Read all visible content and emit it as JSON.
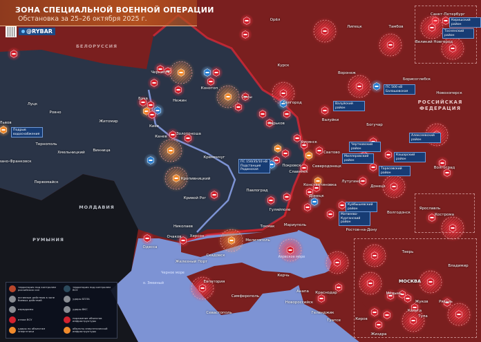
{
  "header": {
    "title": "ЗОНА СПЕЦИАЛЬНОЙ ВОЕННОЙ ОПЕРАЦИИ",
    "subtitle": "Обстановка за 25–26 октября 2025 г.",
    "brand": "@RYBAR"
  },
  "colors": {
    "russia": "#7a1f1f",
    "ukraine": "#2a3447",
    "neighbors": "#15171d",
    "sea": "#7d93d4",
    "strike_marker": "#d3222e",
    "drone_marker": "#2b7fd0",
    "energy_marker": "#f08a2c",
    "header": "#b2501f"
  },
  "countries": {
    "belarus": "БЕЛОРУССИЯ",
    "moldova": "МОЛДАВИЯ",
    "romania": "РУМЫНИЯ",
    "russia_line1": "РОССИЙСКАЯ",
    "russia_line2": "ФЕДЕРАЦИЯ"
  },
  "seas": {
    "black_sea": "Черное море",
    "azov_sea": "Азовское море",
    "snake_island": "о. Змеиный"
  },
  "cities": [
    "Луцк",
    "Ровно",
    "Житомир",
    "Киев",
    "Буча",
    "Чернигов",
    "Нежин",
    "Конотоп",
    "Канев",
    "Золотоноша",
    "Хмельницкий",
    "Тернополь",
    "Винница",
    "Ивано-Франковск",
    "Львов",
    "Кременчуг",
    "Первомайск",
    "Одесса",
    "Николаев",
    "Очаков",
    "Херсон",
    "Кривой Рог",
    "Кропивницкий",
    "Железный Порт",
    "Орёл",
    "Липецк",
    "Тамбов",
    "Воронеж",
    "Курск",
    "Белгород",
    "Борисоглебск",
    "Новохоперск",
    "Сумы",
    "Харьков",
    "Валуйки",
    "Богучар",
    "Санкт-Петербург",
    "Великий Новгород",
    "Купянск",
    "Сватово",
    "Северодонецк",
    "Славянск",
    "Покровск",
    "Константиновка",
    "Донецк",
    "Павлоград",
    "Гуляйполе",
    "Лутугино",
    "Донецк",
    "Мариуполь",
    "Ростов-на-Дону",
    "Волгодонск",
    "Волгоград",
    "Ярославль",
    "Кострома",
    "Токмак",
    "Мелитополь",
    "Скадовск",
    "Евпатория",
    "Симферополь",
    "Севастополь",
    "Керчь",
    "Анапа",
    "Краснодар",
    "Новороссийск",
    "Геленджик",
    "Туапсе",
    "Тверь",
    "Владимир",
    "МОСКВА",
    "Калуга",
    "Жуков",
    "Рязань",
    "Тула",
    "Киров",
    "Жиздра",
    "Медынь"
  ],
  "tags": [
    "Подрыв водоснабжения",
    "ПС 500 кВ Балашовская",
    "Киришский район",
    "Тосненский район",
    "Валуйский район",
    "Чертковский район",
    "Миллеровский район",
    "Тарасовский район",
    "Кашарский район",
    "Алексеевский район",
    "Куйбышевский район",
    "Матвеево-Курганский район",
    "ПС 150/35/10 кВ Подстанция Родинская"
  ],
  "legend": [
    {
      "icon": "territory-russia",
      "color": "#b8472c",
      "text": "территория под контролем российских сил"
    },
    {
      "icon": "territory-ukraine",
      "color": "#2c4a5c",
      "text": "территория под контролем ВСУ"
    },
    {
      "icon": "combat-area",
      "color": "#8a8d93",
      "text": "активные действия в зоне боевых действий"
    },
    {
      "icon": "drone-strike",
      "color": "#8a8d93",
      "text": "удары БПЛА"
    },
    {
      "icon": "airfield",
      "color": "#8a8d93",
      "text": "аэродромы"
    },
    {
      "icon": "air-strike",
      "color": "#8a8d93",
      "text": "удары ВКС"
    },
    {
      "icon": "attack",
      "color": "#d3222e",
      "text": "атаки ВСУ"
    },
    {
      "icon": "infrastructure-hit",
      "color": "#d3222e",
      "text": "поражение объектов инфраструктуры"
    },
    {
      "icon": "energy-hit",
      "color": "#f08a2c",
      "text": "удары по объектам энергетики"
    },
    {
      "icon": "energy-infrastructure",
      "color": "#f08a2c",
      "text": "объекты энергетической инфраструктуры"
    }
  ]
}
